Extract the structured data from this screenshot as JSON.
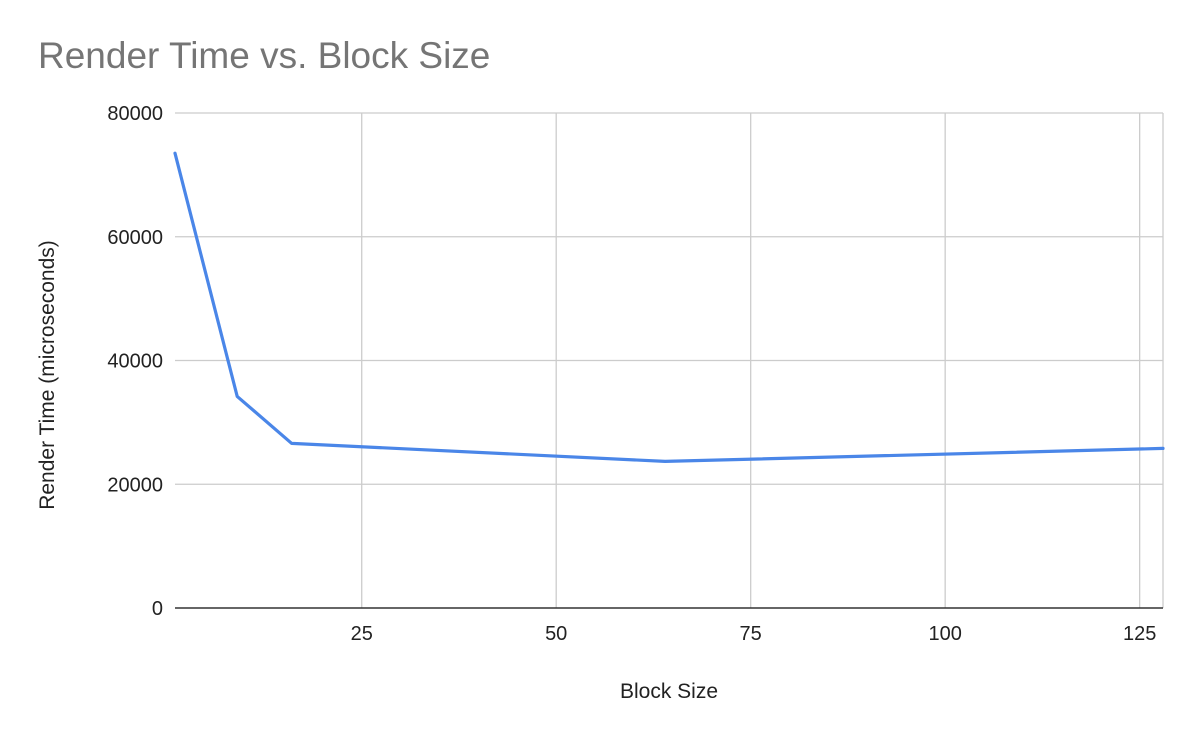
{
  "chart_data": {
    "type": "line",
    "title": "Render Time vs. Block Size",
    "xlabel": "Block Size",
    "ylabel": "Render Time (microseconds)",
    "xlim": [
      1,
      128
    ],
    "ylim": [
      0,
      80000
    ],
    "x_ticks": [
      25,
      50,
      75,
      100,
      125
    ],
    "y_ticks": [
      0,
      20000,
      40000,
      60000,
      80000
    ],
    "grid": true,
    "legend": "none",
    "series": [
      {
        "color": "#4a86e8",
        "points": [
          {
            "x": 1,
            "y": 73500
          },
          {
            "x": 9,
            "y": 34200
          },
          {
            "x": 16,
            "y": 26600
          },
          {
            "x": 64,
            "y": 23700
          },
          {
            "x": 128,
            "y": 25800
          }
        ]
      }
    ]
  }
}
